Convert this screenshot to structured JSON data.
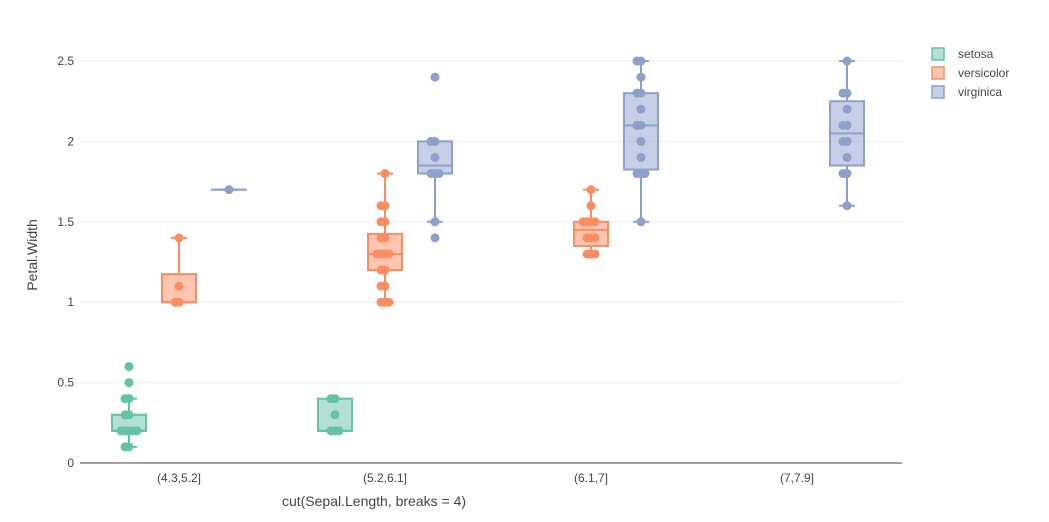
{
  "chart_data": {
    "type": "box",
    "title": "",
    "xlabel": "cut(Sepal.Length, breaks = 4)",
    "ylabel": "Petal.Width",
    "categories": [
      "(4.3,5.2]",
      "(5.2,6.1]",
      "(6.1,7]",
      "(7,7.9]"
    ],
    "ylim": [
      0,
      2.65
    ],
    "yticks": [
      0,
      0.5,
      1,
      1.5,
      2,
      2.5
    ],
    "ytick_labels": [
      "0",
      "0.5",
      "1",
      "1.5",
      "2",
      "2.5"
    ],
    "grid": true,
    "legend_position": "top-right",
    "series": [
      {
        "name": "setosa",
        "color": "#66c2a5",
        "boxes": [
          {
            "category": "(4.3,5.2]",
            "q1": 0.2,
            "median": 0.2,
            "q3": 0.3,
            "whisker_low": 0.1,
            "whisker_high": 0.4,
            "points": [
              0.1,
              0.1,
              0.2,
              0.2,
              0.2,
              0.2,
              0.2,
              0.2,
              0.3,
              0.3,
              0.4,
              0.4,
              0.5,
              0.6
            ]
          },
          {
            "category": "(5.2,6.1]",
            "q1": 0.2,
            "median": 0.2,
            "q3": 0.4,
            "whisker_low": 0.2,
            "whisker_high": 0.4,
            "points": [
              0.2,
              0.2,
              0.2,
              0.3,
              0.4,
              0.4
            ]
          }
        ]
      },
      {
        "name": "versicolor",
        "color": "#fc8d62",
        "boxes": [
          {
            "category": "(4.3,5.2]",
            "q1": 1.0,
            "median": 1.0,
            "q3": 1.175,
            "whisker_low": 1.0,
            "whisker_high": 1.4,
            "points": [
              1.0,
              1.0,
              1.1,
              1.4
            ]
          },
          {
            "category": "(5.2,6.1]",
            "q1": 1.2,
            "median": 1.3,
            "q3": 1.425,
            "whisker_low": 1.0,
            "whisker_high": 1.8,
            "points": [
              1.0,
              1.0,
              1.0,
              1.1,
              1.1,
              1.2,
              1.2,
              1.3,
              1.3,
              1.3,
              1.3,
              1.4,
              1.4,
              1.5,
              1.5,
              1.6,
              1.6,
              1.8
            ]
          },
          {
            "category": "(6.1,7]",
            "q1": 1.35,
            "median": 1.45,
            "q3": 1.5,
            "whisker_low": 1.3,
            "whisker_high": 1.7,
            "points": [
              1.3,
              1.3,
              1.3,
              1.4,
              1.4,
              1.4,
              1.5,
              1.5,
              1.5,
              1.5,
              1.6,
              1.7
            ]
          }
        ]
      },
      {
        "name": "virginica",
        "color": "#8da0cb",
        "boxes": [
          {
            "category": "(4.3,5.2]",
            "q1": 1.7,
            "median": 1.7,
            "q3": 1.7,
            "whisker_low": 1.7,
            "whisker_high": 1.7,
            "points": [
              1.7
            ]
          },
          {
            "category": "(5.2,6.1]",
            "q1": 1.8,
            "median": 1.85,
            "q3": 2.0,
            "whisker_low": 1.5,
            "whisker_high": 2.0,
            "points": [
              1.4,
              1.5,
              1.8,
              1.8,
              1.8,
              1.9,
              2.0,
              2.0,
              2.4
            ]
          },
          {
            "category": "(6.1,7]",
            "q1": 1.825,
            "median": 2.1,
            "q3": 2.3,
            "whisker_low": 1.5,
            "whisker_high": 2.5,
            "points": [
              1.5,
              1.8,
              1.8,
              1.8,
              1.9,
              2.0,
              2.1,
              2.1,
              2.2,
              2.3,
              2.3,
              2.4,
              2.5,
              2.5
            ]
          },
          {
            "category": "(7,7.9]",
            "q1": 1.85,
            "median": 2.05,
            "q3": 2.25,
            "whisker_low": 1.6,
            "whisker_high": 2.5,
            "points": [
              1.6,
              1.8,
              1.8,
              1.9,
              2.0,
              2.0,
              2.1,
              2.1,
              2.2,
              2.3,
              2.3,
              2.5
            ]
          }
        ]
      }
    ]
  }
}
